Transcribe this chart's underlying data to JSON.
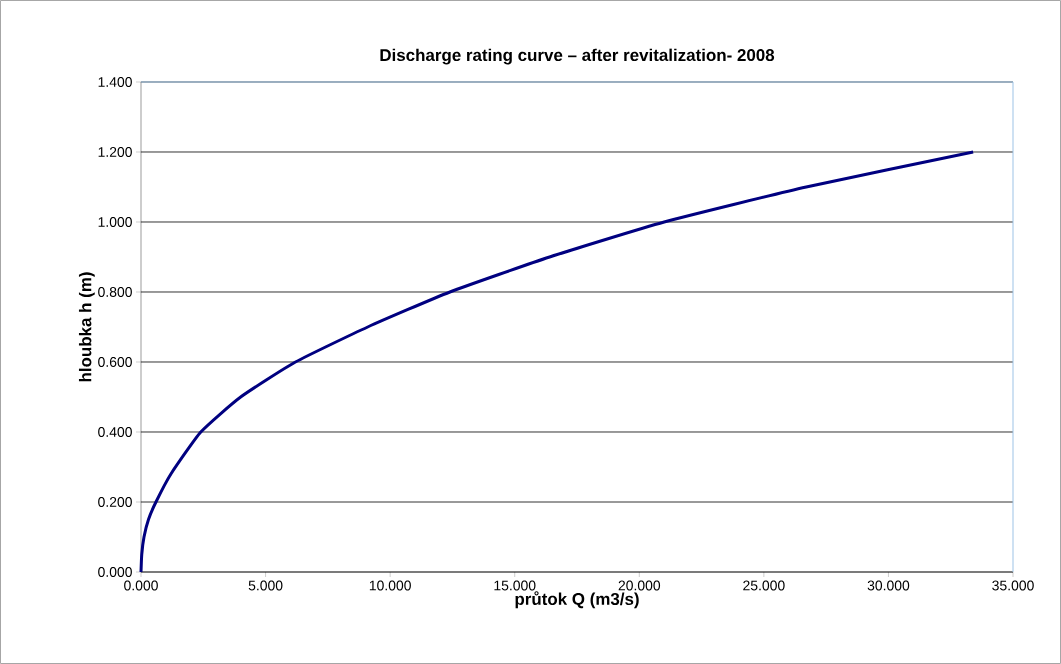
{
  "chart_data": {
    "type": "line",
    "title": "Discharge  rating  curve – after revitalization-  2008",
    "xlabel": "průtok Q (m3/s)",
    "ylabel": "hloubka h (m)",
    "x": [
      0,
      0.03,
      0.12,
      0.3,
      0.6,
      1.2,
      2.4,
      4,
      6.2,
      9.1,
      12.4,
      16.4,
      21,
      26.7,
      33.4
    ],
    "values": [
      0,
      0.05,
      0.1,
      0.15,
      0.2,
      0.28,
      0.4,
      0.5,
      0.6,
      0.7,
      0.8,
      0.9,
      1.0,
      1.1,
      1.2
    ],
    "color": "#000080",
    "xlim": [
      0,
      35
    ],
    "ylim": [
      0,
      1.4
    ],
    "xticks": [
      {
        "value": 0,
        "label": "0.000"
      },
      {
        "value": 5,
        "label": "5.000"
      },
      {
        "value": 10,
        "label": "10.000"
      },
      {
        "value": 15,
        "label": "15.000"
      },
      {
        "value": 20,
        "label": "20.000"
      },
      {
        "value": 25,
        "label": "25.000"
      },
      {
        "value": 30,
        "label": "30.000"
      },
      {
        "value": 35,
        "label": "35.000"
      }
    ],
    "yticks": [
      {
        "value": 0,
        "label": "0.000"
      },
      {
        "value": 0.2,
        "label": "0.200"
      },
      {
        "value": 0.4,
        "label": "0.400"
      },
      {
        "value": 0.6,
        "label": "0.600"
      },
      {
        "value": 0.8,
        "label": "0.800"
      },
      {
        "value": 1.0,
        "label": "1.000"
      },
      {
        "value": 1.2,
        "label": "1.200"
      },
      {
        "value": 1.4,
        "label": "1.400"
      }
    ],
    "grid": "y"
  }
}
